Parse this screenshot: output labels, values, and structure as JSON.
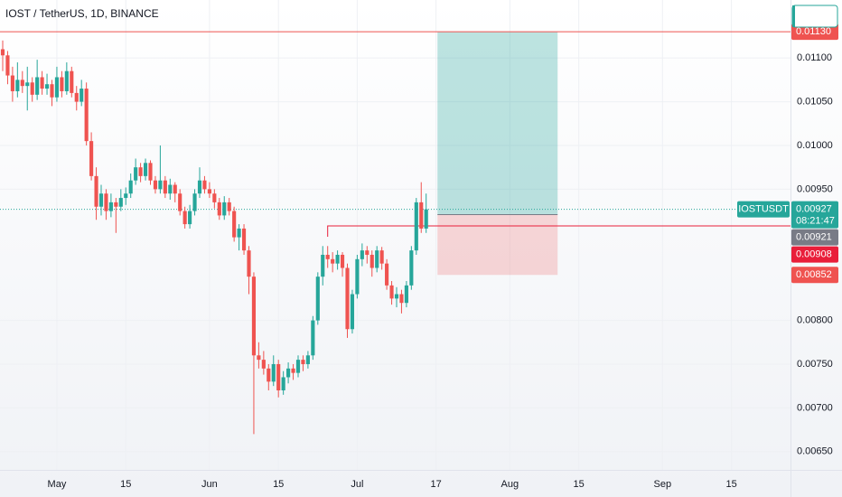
{
  "chart_data": {
    "type": "candlestick",
    "title": "IOST / TetherUS, 1D, BINANCE",
    "up_color": "#26a69a",
    "down_color": "#ef5350",
    "xlim": [
      -0.55,
      160
    ],
    "xticks": [
      {
        "value": 11,
        "label": "May"
      },
      {
        "value": 25,
        "label": "15"
      },
      {
        "value": 42,
        "label": "Jun"
      },
      {
        "value": 56,
        "label": "15"
      },
      {
        "value": 72,
        "label": "Jul"
      },
      {
        "value": 88,
        "label": "17"
      },
      {
        "value": 103,
        "label": "Aug"
      },
      {
        "value": 117,
        "label": "15"
      },
      {
        "value": 134,
        "label": "Sep"
      },
      {
        "value": 148,
        "label": "15"
      }
    ],
    "ylim": [
      0.006291,
      0.011663
    ],
    "yticks": [
      {
        "value": 0.011,
        "label": "0.01100"
      },
      {
        "value": 0.0105,
        "label": "0.01050"
      },
      {
        "value": 0.01,
        "label": "0.01000"
      },
      {
        "value": 0.0095,
        "label": "0.00950"
      },
      {
        "value": 0.008,
        "label": "0.00800"
      },
      {
        "value": 0.0075,
        "label": "0.00750"
      },
      {
        "value": 0.007,
        "label": "0.00700"
      },
      {
        "value": 0.0065,
        "label": "0.00650"
      }
    ],
    "grid": true,
    "candles": [
      [
        0.0111,
        0.0112,
        0.01085,
        0.01103
      ],
      [
        0.01103,
        0.01108,
        0.0107,
        0.0108
      ],
      [
        0.0108,
        0.0109,
        0.0105,
        0.01062
      ],
      [
        0.01062,
        0.01095,
        0.01055,
        0.01075
      ],
      [
        0.01075,
        0.01085,
        0.0106,
        0.01068
      ],
      [
        0.01068,
        0.0109,
        0.0104,
        0.01072
      ],
      [
        0.01072,
        0.01078,
        0.0105,
        0.01058
      ],
      [
        0.01058,
        0.01098,
        0.01052,
        0.01078
      ],
      [
        0.01078,
        0.01085,
        0.01058,
        0.01065
      ],
      [
        0.01065,
        0.01082,
        0.01058,
        0.0107
      ],
      [
        0.0107,
        0.01075,
        0.01045,
        0.01055
      ],
      [
        0.01055,
        0.0109,
        0.0105,
        0.01078
      ],
      [
        0.01078,
        0.01085,
        0.01055,
        0.01062
      ],
      [
        0.01062,
        0.01095,
        0.01058,
        0.01085
      ],
      [
        0.01085,
        0.0109,
        0.01055,
        0.0106
      ],
      [
        0.0106,
        0.01068,
        0.0104,
        0.0105
      ],
      [
        0.0105,
        0.01075,
        0.01045,
        0.01065
      ],
      [
        0.01065,
        0.01072,
        0.01,
        0.01005
      ],
      [
        0.01005,
        0.01015,
        0.0096,
        0.00965
      ],
      [
        0.00965,
        0.00975,
        0.00915,
        0.0093
      ],
      [
        0.0093,
        0.00955,
        0.0092,
        0.00945
      ],
      [
        0.00945,
        0.0095,
        0.00915,
        0.00925
      ],
      [
        0.00925,
        0.00945,
        0.00918,
        0.00935
      ],
      [
        0.00935,
        0.0094,
        0.009,
        0.0093
      ],
      [
        0.0093,
        0.0095,
        0.00925,
        0.0094
      ],
      [
        0.0094,
        0.00952,
        0.00932,
        0.00945
      ],
      [
        0.00945,
        0.00968,
        0.0094,
        0.0096
      ],
      [
        0.0096,
        0.00985,
        0.00955,
        0.00975
      ],
      [
        0.00975,
        0.0098,
        0.00958,
        0.00965
      ],
      [
        0.00965,
        0.00985,
        0.0096,
        0.0098
      ],
      [
        0.0098,
        0.00983,
        0.00955,
        0.0096
      ],
      [
        0.0096,
        0.00965,
        0.00945,
        0.0095
      ],
      [
        0.0095,
        0.01,
        0.00945,
        0.0096
      ],
      [
        0.0096,
        0.00965,
        0.0094,
        0.00945
      ],
      [
        0.00945,
        0.00962,
        0.00938,
        0.00955
      ],
      [
        0.00955,
        0.00958,
        0.00935,
        0.00945
      ],
      [
        0.00945,
        0.0095,
        0.0092,
        0.00925
      ],
      [
        0.00925,
        0.0093,
        0.00905,
        0.0091
      ],
      [
        0.0091,
        0.00932,
        0.00905,
        0.00925
      ],
      [
        0.00925,
        0.0095,
        0.0092,
        0.00945
      ],
      [
        0.00945,
        0.00975,
        0.0094,
        0.0096
      ],
      [
        0.0096,
        0.00965,
        0.00945,
        0.0095
      ],
      [
        0.0095,
        0.00958,
        0.0094,
        0.00945
      ],
      [
        0.00945,
        0.0095,
        0.00928,
        0.00935
      ],
      [
        0.00935,
        0.0094,
        0.00915,
        0.0092
      ],
      [
        0.0092,
        0.00942,
        0.00915,
        0.00935
      ],
      [
        0.00935,
        0.0094,
        0.0092,
        0.00925
      ],
      [
        0.00925,
        0.0093,
        0.0089,
        0.00895
      ],
      [
        0.00895,
        0.0091,
        0.0088,
        0.00905
      ],
      [
        0.00905,
        0.0091,
        0.00875,
        0.0088
      ],
      [
        0.0088,
        0.00885,
        0.0083,
        0.0085
      ],
      [
        0.0085,
        0.00855,
        0.0067,
        0.0076
      ],
      [
        0.0076,
        0.00775,
        0.00745,
        0.00755
      ],
      [
        0.00755,
        0.00765,
        0.00738,
        0.00745
      ],
      [
        0.00745,
        0.0075,
        0.0072,
        0.0073
      ],
      [
        0.0073,
        0.0076,
        0.00725,
        0.0075
      ],
      [
        0.0075,
        0.00755,
        0.00712,
        0.0072
      ],
      [
        0.0072,
        0.00742,
        0.00715,
        0.00735
      ],
      [
        0.00735,
        0.00752,
        0.00728,
        0.00745
      ],
      [
        0.00745,
        0.0075,
        0.00732,
        0.0074
      ],
      [
        0.0074,
        0.0076,
        0.00735,
        0.00755
      ],
      [
        0.00755,
        0.0076,
        0.00742,
        0.0075
      ],
      [
        0.0075,
        0.00765,
        0.00745,
        0.0076
      ],
      [
        0.0076,
        0.00805,
        0.00755,
        0.008
      ],
      [
        0.008,
        0.00855,
        0.00795,
        0.0085
      ],
      [
        0.0085,
        0.00885,
        0.0084,
        0.00875
      ],
      [
        0.00875,
        0.00885,
        0.0086,
        0.0087
      ],
      [
        0.0087,
        0.00878,
        0.00855,
        0.00865
      ],
      [
        0.00865,
        0.0088,
        0.00858,
        0.00875
      ],
      [
        0.00875,
        0.00878,
        0.0085,
        0.0086
      ],
      [
        0.0086,
        0.00865,
        0.0078,
        0.0079
      ],
      [
        0.0079,
        0.00835,
        0.00785,
        0.0083
      ],
      [
        0.0083,
        0.00875,
        0.00825,
        0.0087
      ],
      [
        0.0087,
        0.00888,
        0.00862,
        0.0088
      ],
      [
        0.0088,
        0.00885,
        0.00865,
        0.00875
      ],
      [
        0.00875,
        0.0088,
        0.0085,
        0.0086
      ],
      [
        0.0086,
        0.00885,
        0.00855,
        0.0088
      ],
      [
        0.0088,
        0.00884,
        0.00858,
        0.00865
      ],
      [
        0.00865,
        0.0087,
        0.00835,
        0.0084
      ],
      [
        0.0084,
        0.00845,
        0.00818,
        0.00825
      ],
      [
        0.00825,
        0.00838,
        0.00815,
        0.0083
      ],
      [
        0.0083,
        0.00835,
        0.00808,
        0.0082
      ],
      [
        0.0082,
        0.00845,
        0.00815,
        0.0084
      ],
      [
        0.0084,
        0.00885,
        0.00835,
        0.0088
      ],
      [
        0.0088,
        0.0094,
        0.00875,
        0.00935
      ],
      [
        0.00935,
        0.00958,
        0.009,
        0.00905
      ],
      [
        0.00905,
        0.00945,
        0.009,
        0.00927
      ]
    ],
    "position": {
      "x_start": 88.3,
      "x_end": 112.7,
      "target": {
        "value": 0.0113,
        "label": "0.01130"
      },
      "entry": {
        "value": 0.00921,
        "label": "0.00921"
      },
      "stop": {
        "value": 0.00852,
        "label": "0.00852"
      },
      "profit_color": "#26a69a",
      "loss_color": "#ef5350"
    },
    "horizontal_line": {
      "x_start": 66,
      "price": {
        "value": 0.00908,
        "label": "0.00908"
      },
      "color": "#e91e3a"
    },
    "last_price": {
      "symbol": "IOSTUSDT",
      "price": {
        "value": 0.00927,
        "label": "0.00927"
      },
      "countdown": "08:21:47",
      "color": "#26a69a"
    }
  }
}
